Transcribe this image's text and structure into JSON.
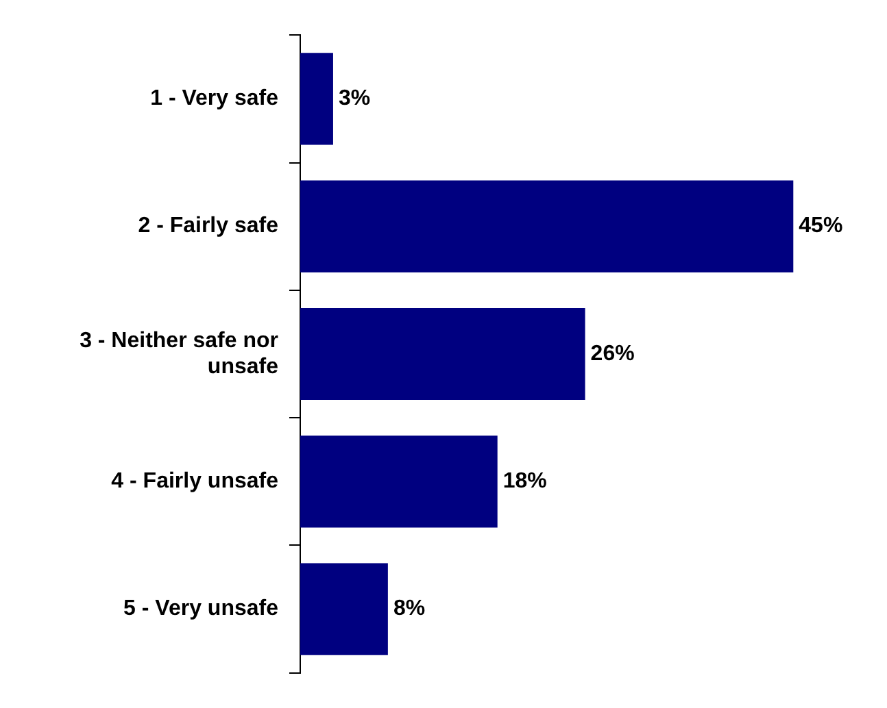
{
  "chart_data": {
    "type": "bar",
    "orientation": "horizontal",
    "categories": [
      "1 - Very safe",
      "2 - Fairly safe",
      "3 - Neither safe nor unsafe",
      "4 - Fairly unsafe",
      "5 - Very unsafe"
    ],
    "values": [
      3,
      45,
      26,
      18,
      8
    ],
    "color": "#000080",
    "value_labels": [
      "3%",
      "45%",
      "26%",
      "18%",
      "8%"
    ],
    "grid": false,
    "legend": false
  }
}
